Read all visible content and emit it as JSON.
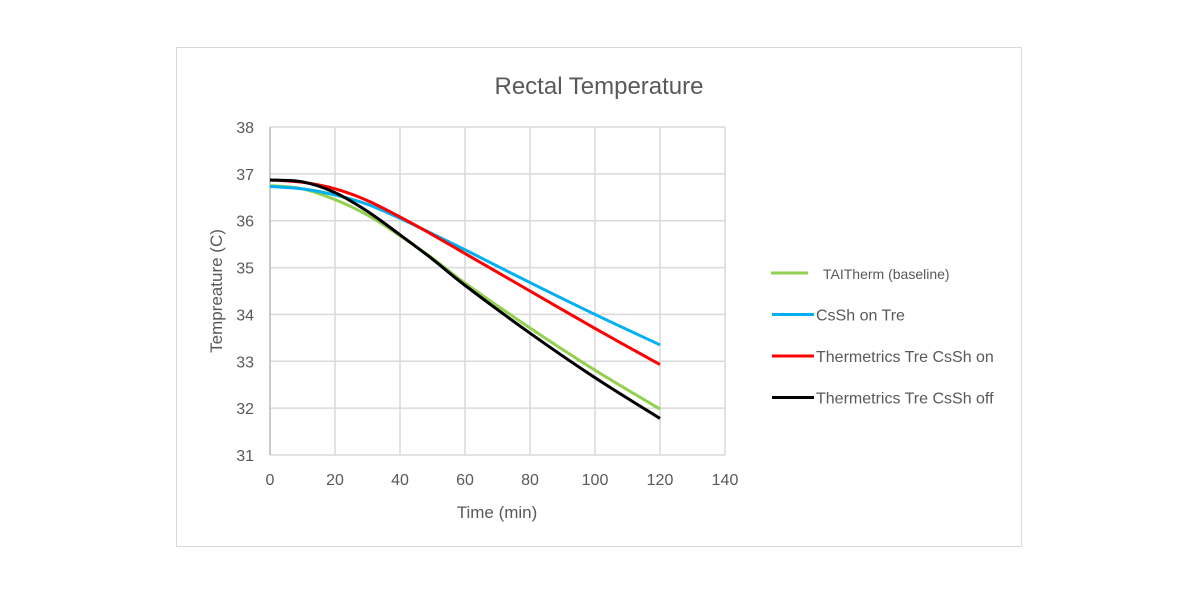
{
  "chart_data": {
    "type": "line",
    "title": "Rectal Temperature",
    "xlabel": "Time (min)",
    "ylabel": "Tempreature (C)",
    "xlim": [
      0,
      140
    ],
    "ylim": [
      31,
      38
    ],
    "xticks": [
      0,
      20,
      40,
      60,
      80,
      100,
      120,
      140
    ],
    "yticks": [
      31,
      32,
      33,
      34,
      35,
      36,
      37,
      38
    ],
    "grid": true,
    "legend_position": "right",
    "x": [
      0,
      10,
      20,
      30,
      40,
      50,
      60,
      80,
      100,
      120
    ],
    "series": [
      {
        "name": "TAITherm (baseline)",
        "color": "#92d050",
        "values": [
          36.75,
          36.68,
          36.45,
          36.12,
          35.68,
          35.2,
          34.67,
          33.71,
          32.81,
          31.98
        ]
      },
      {
        "name": "CsSh on   Tre",
        "color": "#00b0f0",
        "values": [
          36.73,
          36.68,
          36.55,
          36.35,
          36.05,
          35.72,
          35.38,
          34.68,
          34.0,
          33.35
        ]
      },
      {
        "name": "Thermetrics Tre CsSh on",
        "color": "#ff0000",
        "values": [
          36.87,
          36.82,
          36.68,
          36.43,
          36.08,
          35.7,
          35.3,
          34.5,
          33.7,
          32.93
        ]
      },
      {
        "name": "Thermetrics Tre CsSh off",
        "color": "#000000",
        "values": [
          36.87,
          36.83,
          36.6,
          36.2,
          35.7,
          35.18,
          34.62,
          33.6,
          32.65,
          31.78
        ]
      }
    ]
  }
}
